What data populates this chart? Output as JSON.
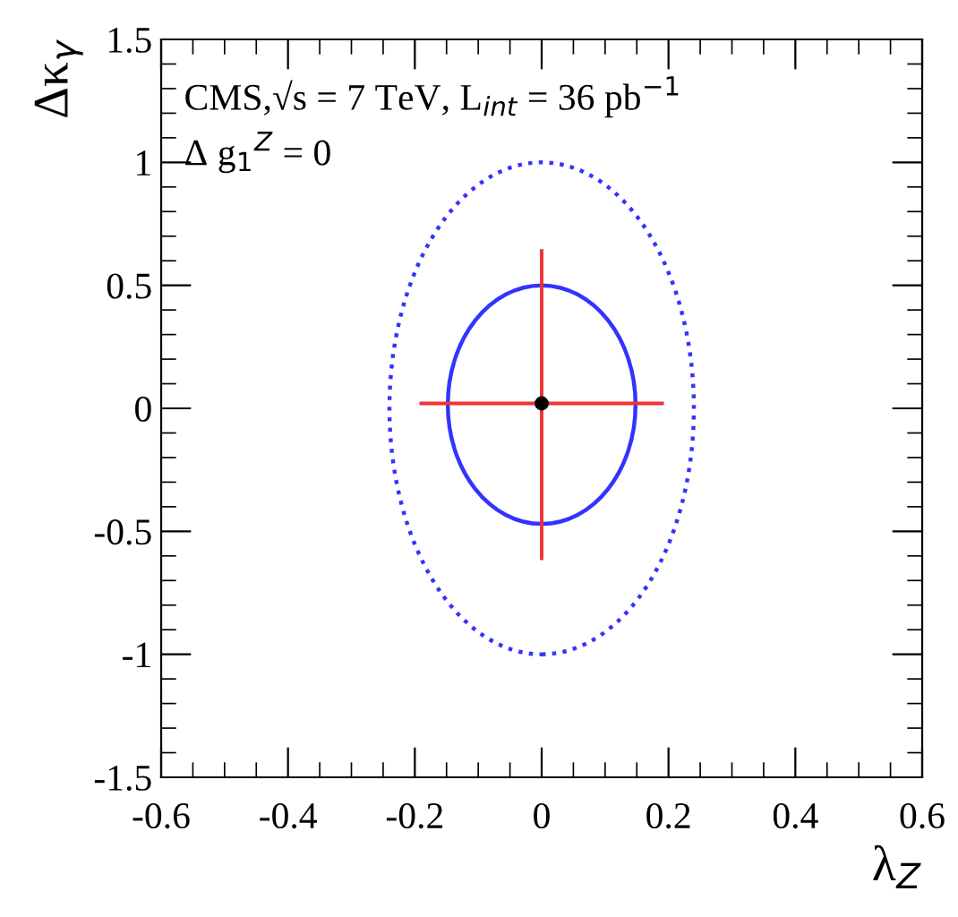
{
  "chart_data": {
    "type": "line",
    "xlabel": "λ$_{Z}$",
    "ylabel": "Δκ$_{γ}$",
    "annotations": [
      "CMS,√s = 7 TeV, L$_{int}$ = 36 pb$^{−1}$",
      "Δ g$_{1}$$^{Z}$ = 0"
    ],
    "xlim": [
      -0.6,
      0.6
    ],
    "xticks": [
      -0.6,
      -0.4,
      -0.2,
      0,
      0.2,
      0.4,
      0.6
    ],
    "ylim": [
      -1.5,
      1.5
    ],
    "yticks": [
      -1.5,
      -1,
      -0.5,
      0,
      0.5,
      1,
      1.5
    ],
    "grid": false,
    "legend": false,
    "series": [
      {
        "line_style": "solid",
        "color": "#ee3333",
        "x": [
          -0.19,
          0.19
        ],
        "values": [
          0.02,
          0.02
        ]
      },
      {
        "line_style": "solid",
        "color": "#ee3333",
        "x": [
          0,
          0
        ],
        "values": [
          0.64,
          -0.61
        ]
      },
      {
        "type": "scatter",
        "marker": "circle",
        "color": "#000000",
        "x": [
          0
        ],
        "values": [
          0.02
        ]
      }
    ]
  }
}
